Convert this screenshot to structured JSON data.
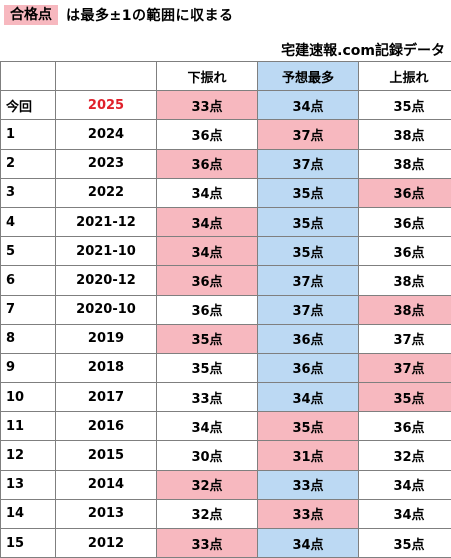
{
  "header": {
    "badge": "合格点",
    "caption": "は最多±1の範囲に収まる",
    "source": "宅建速報.com記録データ"
  },
  "columns": [
    "",
    "",
    "下振れ",
    "予想最多",
    "上振れ"
  ],
  "colors": {
    "pink": "#f7b8bf",
    "blue": "#bcd9f3",
    "current_year": "#e0202a"
  },
  "rows": [
    {
      "index": "今回",
      "year": "2025",
      "low": "33点",
      "mode": "34点",
      "high": "35点",
      "low_bg": "pink",
      "mode_bg": "blue",
      "high_bg": ""
    },
    {
      "index": "1",
      "year": "2024",
      "low": "36点",
      "mode": "37点",
      "high": "38点",
      "low_bg": "",
      "mode_bg": "pink",
      "high_bg": ""
    },
    {
      "index": "2",
      "year": "2023",
      "low": "36点",
      "mode": "37点",
      "high": "38点",
      "low_bg": "pink",
      "mode_bg": "blue",
      "high_bg": ""
    },
    {
      "index": "3",
      "year": "2022",
      "low": "34点",
      "mode": "35点",
      "high": "36点",
      "low_bg": "",
      "mode_bg": "blue",
      "high_bg": "pink"
    },
    {
      "index": "4",
      "year": "2021-12",
      "low": "34点",
      "mode": "35点",
      "high": "36点",
      "low_bg": "pink",
      "mode_bg": "blue",
      "high_bg": ""
    },
    {
      "index": "5",
      "year": "2021-10",
      "low": "34点",
      "mode": "35点",
      "high": "36点",
      "low_bg": "pink",
      "mode_bg": "blue",
      "high_bg": ""
    },
    {
      "index": "6",
      "year": "2020-12",
      "low": "36点",
      "mode": "37点",
      "high": "38点",
      "low_bg": "pink",
      "mode_bg": "blue",
      "high_bg": ""
    },
    {
      "index": "7",
      "year": "2020-10",
      "low": "36点",
      "mode": "37点",
      "high": "38点",
      "low_bg": "",
      "mode_bg": "blue",
      "high_bg": "pink"
    },
    {
      "index": "8",
      "year": "2019",
      "low": "35点",
      "mode": "36点",
      "high": "37点",
      "low_bg": "pink",
      "mode_bg": "blue",
      "high_bg": ""
    },
    {
      "index": "9",
      "year": "2018",
      "low": "35点",
      "mode": "36点",
      "high": "37点",
      "low_bg": "",
      "mode_bg": "blue",
      "high_bg": "pink"
    },
    {
      "index": "10",
      "year": "2017",
      "low": "33点",
      "mode": "34点",
      "high": "35点",
      "low_bg": "",
      "mode_bg": "blue",
      "high_bg": "pink"
    },
    {
      "index": "11",
      "year": "2016",
      "low": "34点",
      "mode": "35点",
      "high": "36点",
      "low_bg": "",
      "mode_bg": "pink",
      "high_bg": ""
    },
    {
      "index": "12",
      "year": "2015",
      "low": "30点",
      "mode": "31点",
      "high": "32点",
      "low_bg": "",
      "mode_bg": "pink",
      "high_bg": ""
    },
    {
      "index": "13",
      "year": "2014",
      "low": "32点",
      "mode": "33点",
      "high": "34点",
      "low_bg": "pink",
      "mode_bg": "blue",
      "high_bg": ""
    },
    {
      "index": "14",
      "year": "2013",
      "low": "32点",
      "mode": "33点",
      "high": "34点",
      "low_bg": "",
      "mode_bg": "pink",
      "high_bg": ""
    },
    {
      "index": "15",
      "year": "2012",
      "low": "33点",
      "mode": "34点",
      "high": "35点",
      "low_bg": "pink",
      "mode_bg": "blue",
      "high_bg": ""
    }
  ]
}
